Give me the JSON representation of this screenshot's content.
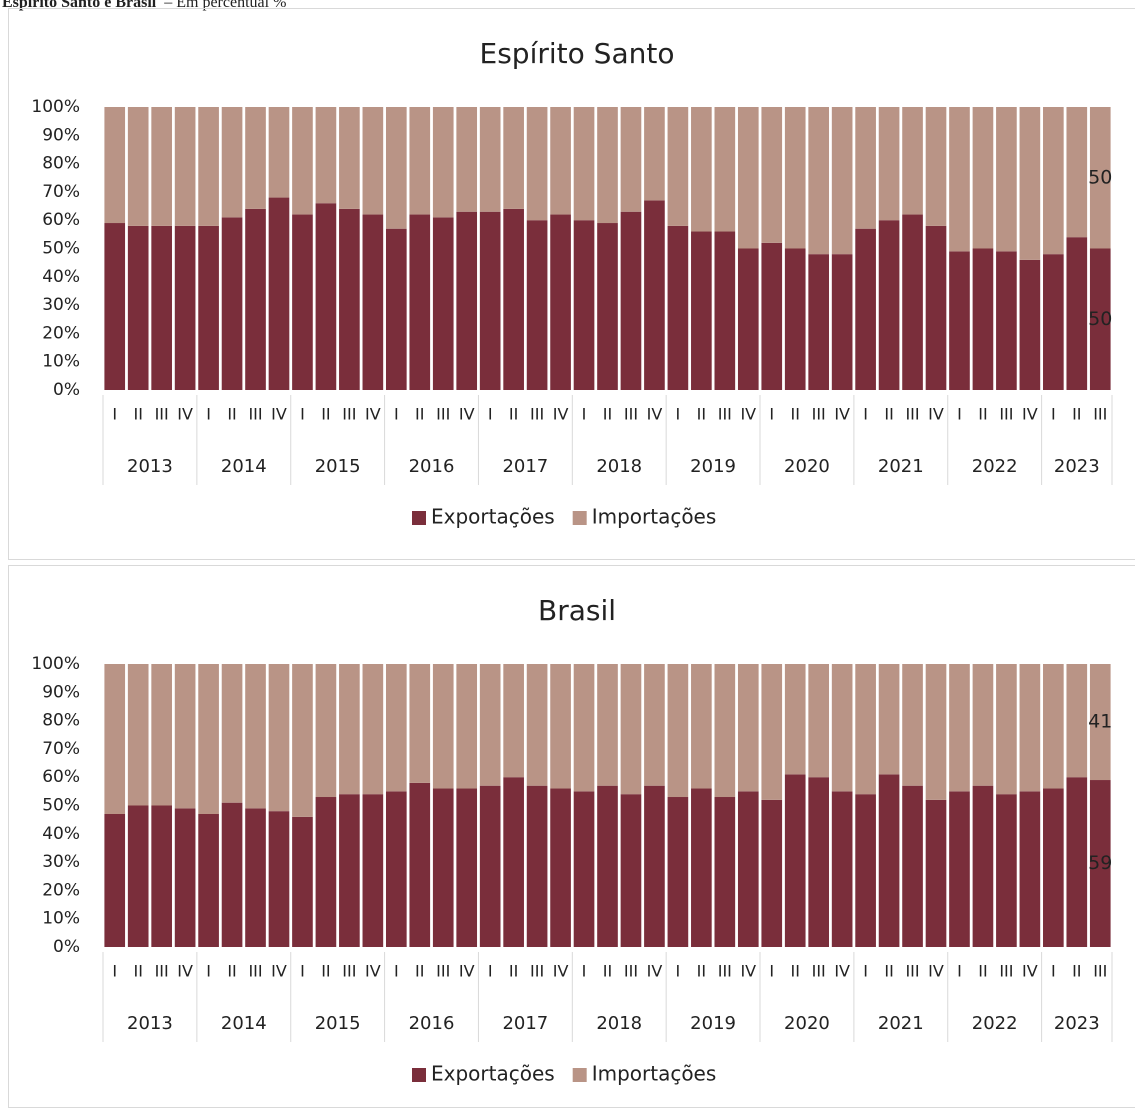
{
  "header": {
    "title": "Espírito Santo e Brasil",
    "subtitle": "– Em percentual %"
  },
  "chart_data": [
    {
      "type": "bar",
      "stacked": true,
      "title": "Espírito Santo",
      "legend": "bottom",
      "groups": [
        {
          "label": "2013",
          "categories": [
            "I",
            "II",
            "III",
            "IV"
          ]
        },
        {
          "label": "2014",
          "categories": [
            "I",
            "II",
            "III",
            "IV"
          ]
        },
        {
          "label": "2015",
          "categories": [
            "I",
            "II",
            "III",
            "IV"
          ]
        },
        {
          "label": "2016",
          "categories": [
            "I",
            "II",
            "III",
            "IV"
          ]
        },
        {
          "label": "2017",
          "categories": [
            "I",
            "II",
            "III",
            "IV"
          ]
        },
        {
          "label": "2018",
          "categories": [
            "I",
            "II",
            "III",
            "IV"
          ]
        },
        {
          "label": "2019",
          "categories": [
            "I",
            "II",
            "III",
            "IV"
          ]
        },
        {
          "label": "2020",
          "categories": [
            "I",
            "II",
            "III",
            "IV"
          ]
        },
        {
          "label": "2021",
          "categories": [
            "I",
            "II",
            "III",
            "IV"
          ]
        },
        {
          "label": "2022",
          "categories": [
            "I",
            "II",
            "III",
            "IV"
          ]
        },
        {
          "label": "2023",
          "categories": [
            "I",
            "II",
            "III"
          ]
        }
      ],
      "series": [
        {
          "name": "Exportações",
          "color": "#7a2e3b",
          "data_label": "last",
          "values": [
            59,
            58,
            58,
            58,
            58,
            61,
            64,
            68,
            62,
            66,
            64,
            62,
            57,
            62,
            61,
            63,
            63,
            64,
            60,
            62,
            60,
            59,
            63,
            67,
            58,
            56,
            56,
            50,
            52,
            50,
            48,
            48,
            57,
            60,
            62,
            58,
            49,
            50,
            49,
            46,
            48,
            54,
            50
          ]
        },
        {
          "name": "Importações",
          "color": "#b99486",
          "data_label": "last",
          "values": [
            41,
            42,
            42,
            42,
            42,
            39,
            36,
            32,
            38,
            34,
            36,
            38,
            43,
            38,
            39,
            37,
            37,
            36,
            40,
            38,
            40,
            41,
            37,
            33,
            42,
            44,
            44,
            50,
            48,
            50,
            52,
            52,
            43,
            40,
            38,
            42,
            51,
            50,
            51,
            54,
            52,
            46,
            50
          ]
        }
      ],
      "ylim": [
        0,
        100
      ],
      "yticks": [
        {
          "value": 0,
          "label": "0%"
        },
        {
          "value": 10,
          "label": "10%"
        },
        {
          "value": 20,
          "label": "20%"
        },
        {
          "value": 30,
          "label": "30%"
        },
        {
          "value": 40,
          "label": "40%"
        },
        {
          "value": 50,
          "label": "50%"
        },
        {
          "value": 60,
          "label": "60%"
        },
        {
          "value": 70,
          "label": "70%"
        },
        {
          "value": 80,
          "label": "80%"
        },
        {
          "value": 90,
          "label": "90%"
        },
        {
          "value": 100,
          "label": "100%"
        }
      ]
    },
    {
      "type": "bar",
      "stacked": true,
      "title": "Brasil",
      "legend": "bottom",
      "groups": [
        {
          "label": "2013",
          "categories": [
            "I",
            "II",
            "III",
            "IV"
          ]
        },
        {
          "label": "2014",
          "categories": [
            "I",
            "II",
            "III",
            "IV"
          ]
        },
        {
          "label": "2015",
          "categories": [
            "I",
            "II",
            "III",
            "IV"
          ]
        },
        {
          "label": "2016",
          "categories": [
            "I",
            "II",
            "III",
            "IV"
          ]
        },
        {
          "label": "2017",
          "categories": [
            "I",
            "II",
            "III",
            "IV"
          ]
        },
        {
          "label": "2018",
          "categories": [
            "I",
            "II",
            "III",
            "IV"
          ]
        },
        {
          "label": "2019",
          "categories": [
            "I",
            "II",
            "III",
            "IV"
          ]
        },
        {
          "label": "2020",
          "categories": [
            "I",
            "II",
            "III",
            "IV"
          ]
        },
        {
          "label": "2021",
          "categories": [
            "I",
            "II",
            "III",
            "IV"
          ]
        },
        {
          "label": "2022",
          "categories": [
            "I",
            "II",
            "III",
            "IV"
          ]
        },
        {
          "label": "2023",
          "categories": [
            "I",
            "II",
            "III"
          ]
        }
      ],
      "series": [
        {
          "name": "Exportações",
          "color": "#7a2e3b",
          "data_label": "last",
          "values": [
            47,
            50,
            50,
            49,
            47,
            51,
            49,
            48,
            46,
            53,
            54,
            54,
            55,
            58,
            56,
            56,
            57,
            60,
            57,
            56,
            55,
            57,
            54,
            57,
            53,
            56,
            53,
            55,
            52,
            61,
            60,
            55,
            54,
            61,
            57,
            52,
            55,
            57,
            54,
            55,
            56,
            60,
            59
          ]
        },
        {
          "name": "Importações",
          "color": "#b99486",
          "data_label": "last",
          "values": [
            53,
            50,
            50,
            51,
            53,
            49,
            51,
            52,
            54,
            47,
            46,
            46,
            45,
            42,
            44,
            44,
            43,
            40,
            43,
            44,
            45,
            43,
            46,
            43,
            47,
            44,
            47,
            45,
            48,
            39,
            40,
            45,
            46,
            39,
            43,
            48,
            45,
            43,
            46,
            45,
            44,
            40,
            41
          ]
        }
      ],
      "ylim": [
        0,
        100
      ],
      "yticks": [
        {
          "value": 0,
          "label": "0%"
        },
        {
          "value": 10,
          "label": "10%"
        },
        {
          "value": 20,
          "label": "20%"
        },
        {
          "value": 30,
          "label": "30%"
        },
        {
          "value": 40,
          "label": "40%"
        },
        {
          "value": 50,
          "label": "50%"
        },
        {
          "value": 60,
          "label": "60%"
        },
        {
          "value": 70,
          "label": "70%"
        },
        {
          "value": 80,
          "label": "80%"
        },
        {
          "value": 90,
          "label": "90%"
        },
        {
          "value": 100,
          "label": "100%"
        }
      ]
    }
  ]
}
